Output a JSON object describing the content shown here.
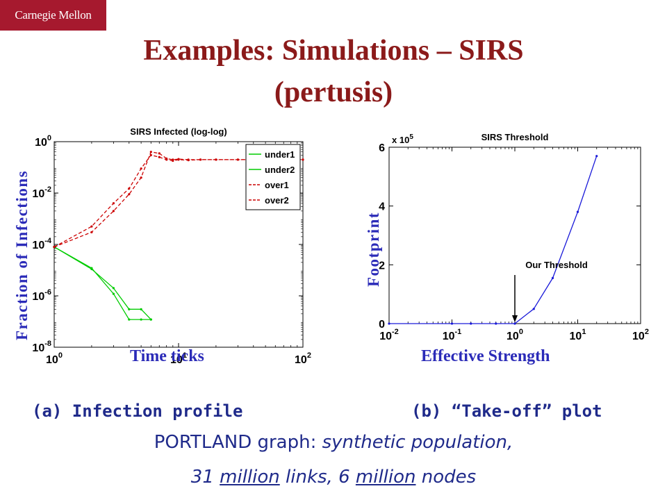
{
  "logo": "Carnegie Mellon",
  "title_line1": "Examples: Simulations – SIRS",
  "title_line2": "(pertusis)",
  "caption_a": "(a) Infection profile",
  "caption_b": "(b) “Take-off” plot",
  "footer": {
    "line1_plain": "PORTLAND graph: ",
    "line1_italic": "synthetic population,",
    "line2_a": "31 ",
    "line2_u1": "million",
    "line2_b": " links, 6 ",
    "line2_u2": "million",
    "line2_c": " nodes"
  },
  "colors": {
    "green": "#00cc00",
    "red": "#cc0000",
    "blue": "#1a1ad9",
    "label": "#2b2bb8",
    "title": "#8b1a1a"
  },
  "chart_data": [
    {
      "type": "line",
      "title": "SIRS Infected (log-log)",
      "xlabel": "Time ticks",
      "ylabel": "Fraction of Infections",
      "xscale": "log",
      "yscale": "log",
      "xlim": [
        1,
        100
      ],
      "ylim": [
        1e-08,
        1
      ],
      "xticks": [
        1,
        10,
        100
      ],
      "xtick_labels": [
        [
          "10",
          "0"
        ],
        [
          "10",
          "1"
        ],
        [
          "10",
          "2"
        ]
      ],
      "yticks": [
        1e-08,
        1e-06,
        0.0001,
        0.01,
        1
      ],
      "ytick_labels": [
        [
          "10",
          "-8"
        ],
        [
          "10",
          "-6"
        ],
        [
          "10",
          "-4"
        ],
        [
          "10",
          "-2"
        ],
        [
          "10",
          "0"
        ]
      ],
      "legend_position": "top-right",
      "series": [
        {
          "name": "under1",
          "color": "#00cc00",
          "dash": false,
          "x": [
            1,
            2,
            3,
            4,
            5,
            6
          ],
          "y": [
            8e-05,
            1.2e-05,
            1.2e-06,
            1.2e-07,
            1.2e-07,
            1.2e-07
          ]
        },
        {
          "name": "under2",
          "color": "#00cc00",
          "dash": false,
          "x": [
            1,
            2,
            3,
            4,
            5,
            6
          ],
          "y": [
            8e-05,
            1.1e-05,
            2e-06,
            3e-07,
            3e-07,
            1.2e-07
          ]
        },
        {
          "name": "over1",
          "color": "#cc0000",
          "dash": true,
          "x": [
            1,
            2,
            3,
            4,
            5,
            6,
            7,
            8,
            9,
            10,
            12,
            15,
            20,
            30,
            50,
            70,
            100
          ],
          "y": [
            8e-05,
            0.0003,
            0.002,
            0.009,
            0.04,
            0.4,
            0.35,
            0.22,
            0.2,
            0.21,
            0.2,
            0.2,
            0.2,
            0.2,
            0.2,
            0.2,
            0.2
          ]
        },
        {
          "name": "over2",
          "color": "#cc0000",
          "dash": true,
          "x": [
            1,
            2,
            3,
            4,
            5,
            6,
            7,
            8,
            9,
            10,
            12,
            15,
            20,
            30,
            50,
            70,
            100
          ],
          "y": [
            8e-05,
            0.0005,
            0.004,
            0.015,
            0.09,
            0.3,
            0.25,
            0.2,
            0.18,
            0.2,
            0.19,
            0.2,
            0.2,
            0.2,
            0.2,
            0.2,
            0.2
          ]
        }
      ]
    },
    {
      "type": "line",
      "title": "SIRS Threshold",
      "xlabel": "Effective Strength",
      "ylabel": "Footprint",
      "xscale": "log",
      "yscale": "linear",
      "xlim": [
        0.01,
        100
      ],
      "ylim": [
        0,
        6
      ],
      "y_multiplier": "x 10",
      "y_multiplier_exp": "5",
      "xticks": [
        0.01,
        0.1,
        1,
        10,
        100
      ],
      "xtick_labels": [
        [
          "10",
          "-2"
        ],
        [
          "10",
          "-1"
        ],
        [
          "10",
          "0"
        ],
        [
          "10",
          "1"
        ],
        [
          "10",
          "2"
        ]
      ],
      "yticks": [
        0,
        2,
        4,
        6
      ],
      "ytick_labels": [
        "0",
        "2",
        "4",
        "6"
      ],
      "annotation": {
        "text": "Our Threshold",
        "x": 1,
        "y": 0
      },
      "series": [
        {
          "name": "",
          "color": "#1a1ad9",
          "dash": false,
          "x": [
            0.01,
            0.1,
            0.2,
            0.5,
            1,
            2,
            4,
            10,
            20
          ],
          "y": [
            0,
            0,
            0,
            0,
            0,
            0.5,
            1.55,
            3.8,
            5.7
          ]
        }
      ]
    }
  ]
}
